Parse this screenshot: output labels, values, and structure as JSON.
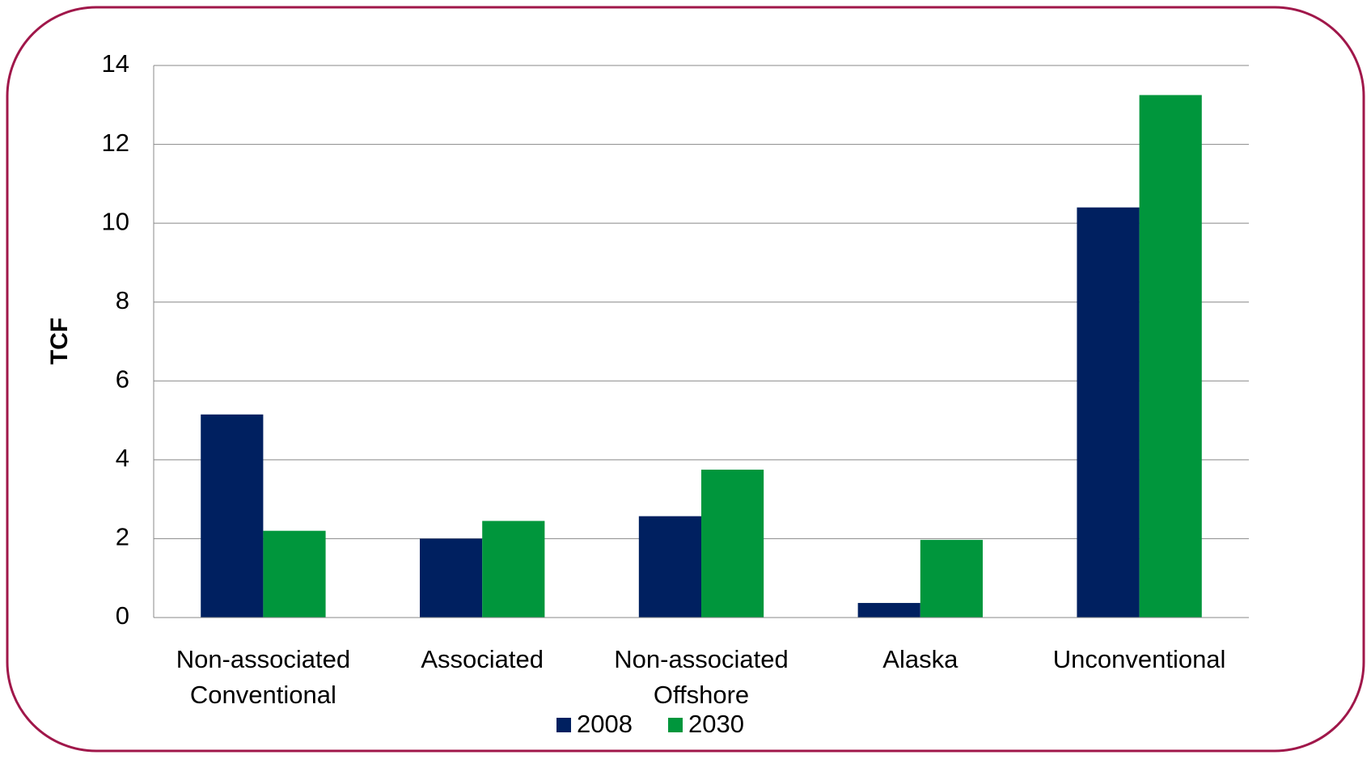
{
  "chart_data": {
    "type": "bar",
    "ylabel": "TCF",
    "categories": [
      "Non-associated Conventional",
      "Associated",
      "Non-associated Offshore",
      "Alaska",
      "Unconventional"
    ],
    "series": [
      {
        "name": "2008",
        "color": "#002060",
        "values": [
          5.15,
          2.0,
          2.57,
          0.37,
          10.4
        ]
      },
      {
        "name": "2030",
        "color": "#00963c",
        "values": [
          2.2,
          2.45,
          3.75,
          1.97,
          13.25
        ]
      }
    ],
    "ylim": [
      0,
      14
    ],
    "yticks": [
      0,
      2,
      4,
      6,
      8,
      10,
      12,
      14
    ],
    "grid": true,
    "legend": "bottom"
  }
}
